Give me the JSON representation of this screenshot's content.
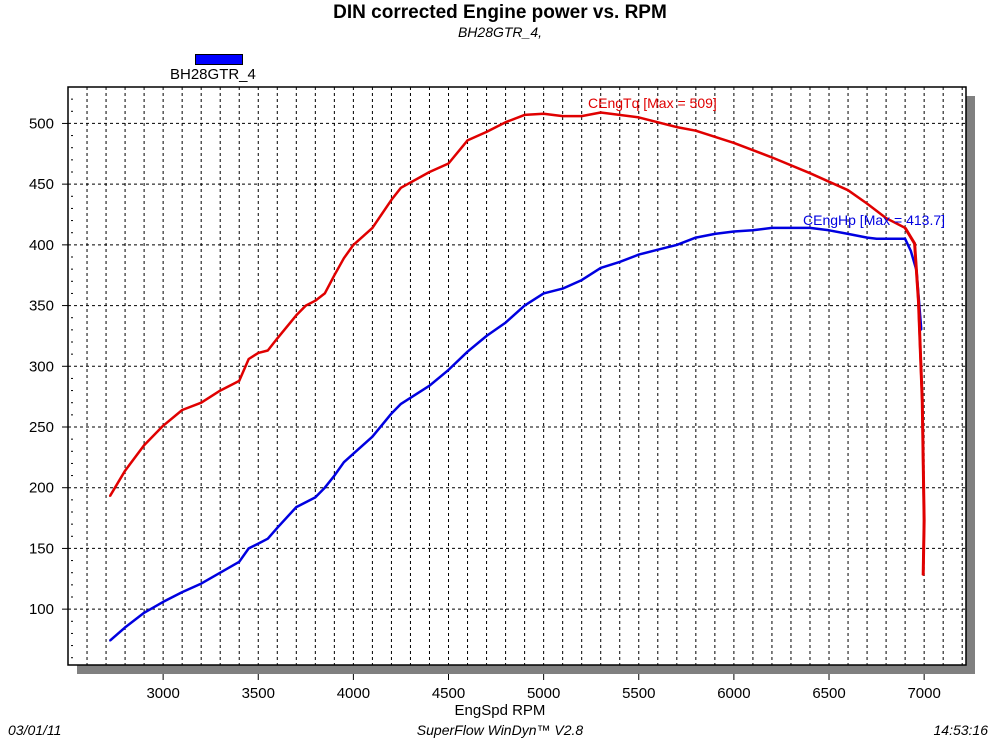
{
  "chart_data": {
    "type": "line",
    "title": "DIN corrected Engine power vs. RPM",
    "subtitle": "BH28GTR_4,",
    "xlabel": "EngSpd RPM",
    "ylabel": "",
    "xlim": [
      2500,
      7220
    ],
    "ylim": [
      54,
      530
    ],
    "xticks": [
      3000,
      3500,
      4000,
      4500,
      5000,
      5500,
      6000,
      6500,
      7000
    ],
    "yticks": [
      100,
      150,
      200,
      250,
      300,
      350,
      400,
      450,
      500
    ],
    "grid": true,
    "legend": {
      "placement": "top-left",
      "entries": [
        "BH28GTR_4"
      ]
    },
    "series": [
      {
        "name": "CEngTq",
        "annotation": "CEngTq [Max = 509]",
        "color": "#e00000",
        "x": [
          2720,
          2800,
          2900,
          3000,
          3100,
          3200,
          3300,
          3400,
          3450,
          3500,
          3550,
          3600,
          3700,
          3750,
          3800,
          3850,
          3900,
          3950,
          4000,
          4100,
          4200,
          4250,
          4400,
          4500,
          4600,
          4700,
          4800,
          4900,
          5000,
          5100,
          5200,
          5300,
          5500,
          5700,
          5800,
          6000,
          6200,
          6400,
          6600,
          6700,
          6800,
          6900,
          6950,
          6970,
          6990,
          7000,
          6995
        ],
        "y": [
          193,
          214,
          235,
          251,
          264,
          270,
          280,
          288,
          306,
          311,
          313,
          323,
          342,
          350,
          354,
          360,
          375,
          389,
          400,
          414,
          437,
          447,
          460,
          467,
          486,
          493,
          501,
          507,
          508,
          506,
          506,
          509,
          505,
          497,
          494,
          484,
          472,
          459,
          445,
          434,
          422,
          414,
          401,
          354,
          272,
          173,
          128
        ]
      },
      {
        "name": "CEngHp",
        "annotation": "CEngHp [Max = 413.7]",
        "color": "#0000e0",
        "x": [
          2720,
          2800,
          2900,
          3000,
          3100,
          3200,
          3300,
          3400,
          3450,
          3500,
          3550,
          3600,
          3700,
          3800,
          3850,
          3900,
          3950,
          4000,
          4100,
          4200,
          4250,
          4400,
          4500,
          4600,
          4700,
          4800,
          4900,
          5000,
          5100,
          5200,
          5300,
          5400,
          5500,
          5600,
          5700,
          5800,
          5900,
          6000,
          6100,
          6200,
          6400,
          6500,
          6600,
          6700,
          6750,
          6900,
          6930,
          6960,
          6985
        ],
        "y": [
          74,
          85,
          97,
          106,
          114,
          121,
          130,
          139,
          150,
          154,
          158,
          167,
          184,
          192,
          200,
          210,
          221,
          228,
          242,
          261,
          269,
          284,
          297,
          312,
          325,
          336,
          350,
          360,
          364,
          371,
          381,
          386,
          392,
          396,
          400,
          406,
          409,
          411,
          412,
          414,
          414,
          412,
          409,
          406,
          405,
          405,
          395,
          379,
          330
        ]
      }
    ]
  },
  "footer": {
    "date": "03/01/11",
    "app": "SuperFlow WinDyn™ V2.8",
    "time": "14:53:16"
  }
}
